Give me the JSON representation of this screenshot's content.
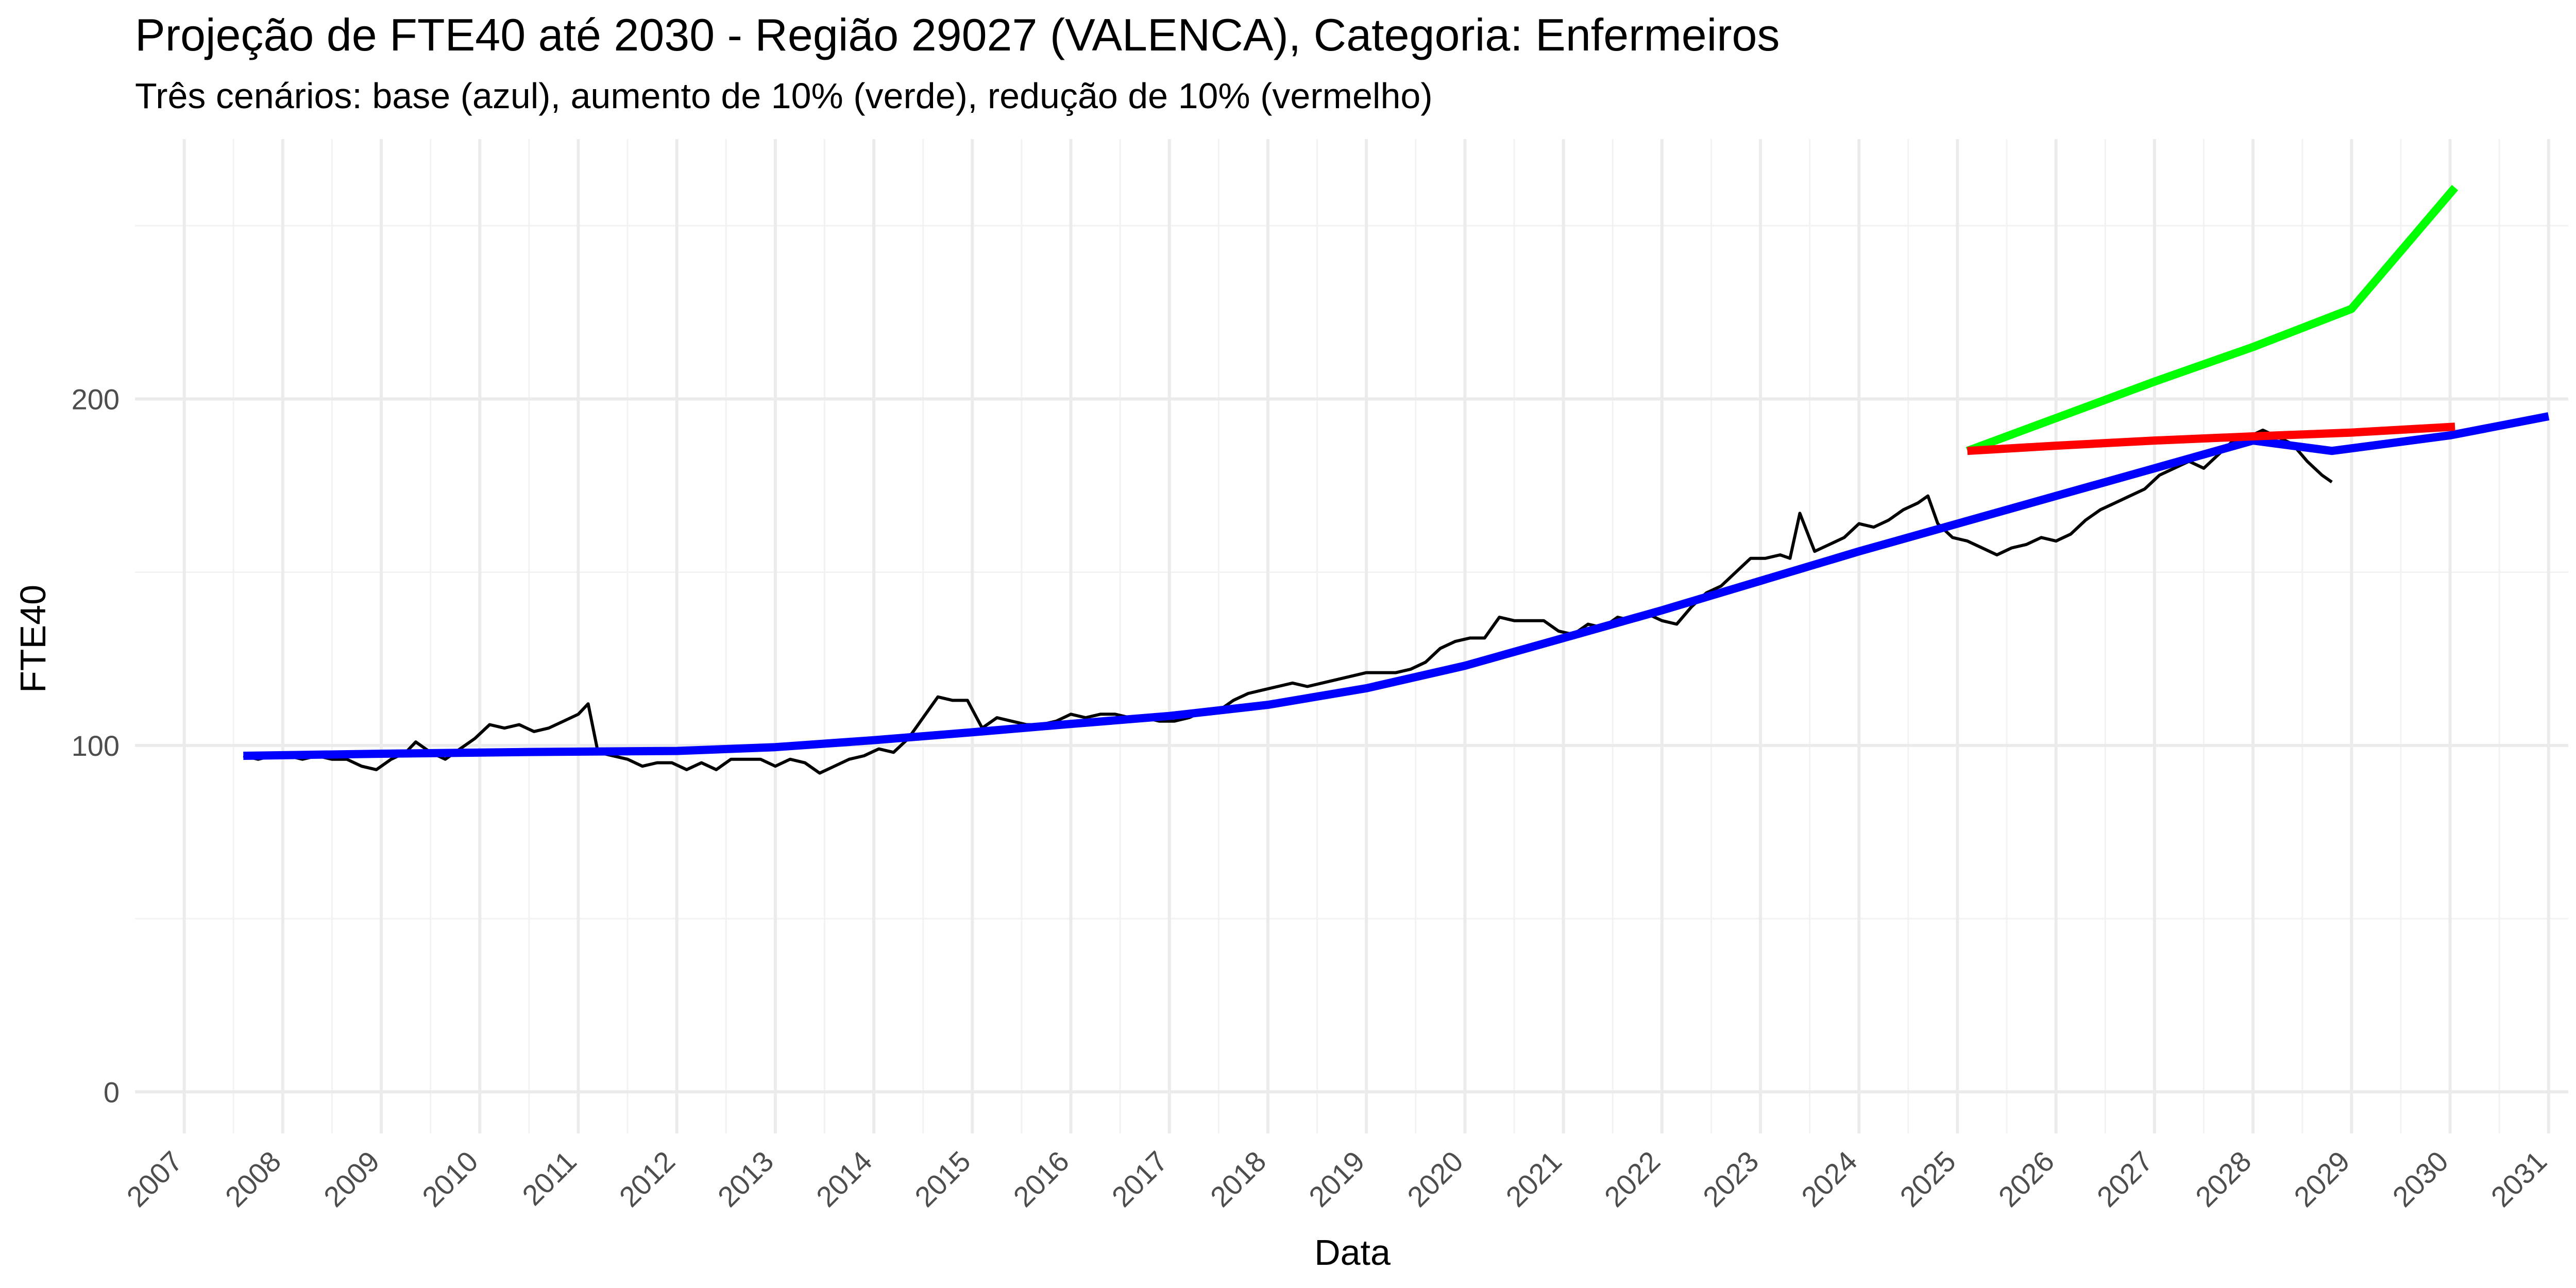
{
  "chart_data": {
    "type": "line",
    "title": "Projeção de FTE40 até 2030 - Região 29027 (VALENCA), Categoria: Enfermeiros",
    "subtitle": "Três cenários: base (azul), aumento de 10% (verde), redução de 10% (vermelho)",
    "xlabel": "Data",
    "ylabel": "FTE40",
    "xlim": [
      2006.5,
      2031.2
    ],
    "ylim": [
      -12,
      275
    ],
    "y_ticks": [
      0,
      100,
      200
    ],
    "y_tick_labels": [
      "0",
      "100",
      "200"
    ],
    "x_ticks": [
      2007,
      2008,
      2009,
      2010,
      2011,
      2012,
      2013,
      2014,
      2015,
      2016,
      2017,
      2018,
      2019,
      2020,
      2021,
      2022,
      2023,
      2024,
      2025,
      2026,
      2027,
      2028,
      2029,
      2030,
      2031
    ],
    "x_tick_labels": [
      "2007",
      "2008",
      "2009",
      "2010",
      "2011",
      "2012",
      "2013",
      "2014",
      "2015",
      "2016",
      "2017",
      "2018",
      "2019",
      "2020",
      "2021",
      "2022",
      "2023",
      "2024",
      "2025",
      "2026",
      "2027",
      "2028",
      "2029",
      "2030",
      "2031"
    ],
    "grid": true,
    "legend": "none",
    "series": [
      {
        "color": "#000000",
        "points": [
          [
            2007.6,
            97
          ],
          [
            2007.75,
            96
          ],
          [
            2007.9,
            97
          ],
          [
            2008.05,
            97
          ],
          [
            2008.2,
            96
          ],
          [
            2008.35,
            97
          ],
          [
            2008.5,
            96
          ],
          [
            2008.65,
            96
          ],
          [
            2008.8,
            94
          ],
          [
            2008.95,
            93
          ],
          [
            2009.1,
            96
          ],
          [
            2009.25,
            98
          ],
          [
            2009.35,
            101
          ],
          [
            2009.5,
            98
          ],
          [
            2009.65,
            96
          ],
          [
            2009.8,
            99
          ],
          [
            2009.95,
            102
          ],
          [
            2010.1,
            106
          ],
          [
            2010.25,
            105
          ],
          [
            2010.4,
            106
          ],
          [
            2010.55,
            104
          ],
          [
            2010.7,
            105
          ],
          [
            2010.85,
            107
          ],
          [
            2011.0,
            109
          ],
          [
            2011.1,
            112
          ],
          [
            2011.2,
            98
          ],
          [
            2011.35,
            97
          ],
          [
            2011.5,
            96
          ],
          [
            2011.65,
            94
          ],
          [
            2011.8,
            95
          ],
          [
            2011.95,
            95
          ],
          [
            2012.1,
            93
          ],
          [
            2012.25,
            95
          ],
          [
            2012.4,
            93
          ],
          [
            2012.55,
            96
          ],
          [
            2012.7,
            96
          ],
          [
            2012.85,
            96
          ],
          [
            2013.0,
            94
          ],
          [
            2013.15,
            96
          ],
          [
            2013.3,
            95
          ],
          [
            2013.45,
            92
          ],
          [
            2013.6,
            94
          ],
          [
            2013.75,
            96
          ],
          [
            2013.9,
            97
          ],
          [
            2014.05,
            99
          ],
          [
            2014.2,
            98
          ],
          [
            2014.35,
            102
          ],
          [
            2014.5,
            108
          ],
          [
            2014.65,
            114
          ],
          [
            2014.8,
            113
          ],
          [
            2014.95,
            113
          ],
          [
            2015.1,
            105
          ],
          [
            2015.25,
            108
          ],
          [
            2015.4,
            107
          ],
          [
            2015.55,
            106
          ],
          [
            2015.7,
            106
          ],
          [
            2015.85,
            107
          ],
          [
            2016.0,
            109
          ],
          [
            2016.15,
            108
          ],
          [
            2016.3,
            109
          ],
          [
            2016.45,
            109
          ],
          [
            2016.6,
            108
          ],
          [
            2016.75,
            108
          ],
          [
            2016.9,
            107
          ],
          [
            2017.05,
            107
          ],
          [
            2017.2,
            108
          ],
          [
            2017.35,
            110
          ],
          [
            2017.5,
            110
          ],
          [
            2017.65,
            113
          ],
          [
            2017.8,
            115
          ],
          [
            2017.95,
            116
          ],
          [
            2018.1,
            117
          ],
          [
            2018.25,
            118
          ],
          [
            2018.4,
            117
          ],
          [
            2018.55,
            118
          ],
          [
            2018.7,
            119
          ],
          [
            2018.85,
            120
          ],
          [
            2019.0,
            121
          ],
          [
            2019.15,
            121
          ],
          [
            2019.3,
            121
          ],
          [
            2019.45,
            122
          ],
          [
            2019.6,
            124
          ],
          [
            2019.75,
            128
          ],
          [
            2019.9,
            130
          ],
          [
            2020.05,
            131
          ],
          [
            2020.2,
            131
          ],
          [
            2020.35,
            137
          ],
          [
            2020.5,
            136
          ],
          [
            2020.65,
            136
          ],
          [
            2020.8,
            136
          ],
          [
            2020.95,
            133
          ],
          [
            2021.1,
            132
          ],
          [
            2021.25,
            135
          ],
          [
            2021.4,
            134
          ],
          [
            2021.55,
            137
          ],
          [
            2021.7,
            136
          ],
          [
            2021.85,
            138
          ],
          [
            2022.0,
            136
          ],
          [
            2022.15,
            135
          ],
          [
            2022.3,
            140
          ],
          [
            2022.45,
            144
          ],
          [
            2022.6,
            146
          ],
          [
            2022.75,
            150
          ],
          [
            2022.9,
            154
          ],
          [
            2023.05,
            154
          ],
          [
            2023.2,
            155
          ],
          [
            2023.3,
            154
          ],
          [
            2023.4,
            167
          ],
          [
            2023.55,
            156
          ],
          [
            2023.7,
            158
          ],
          [
            2023.85,
            160
          ],
          [
            2024.0,
            164
          ],
          [
            2024.15,
            163
          ],
          [
            2024.3,
            165
          ],
          [
            2024.45,
            168
          ],
          [
            2024.6,
            170
          ],
          [
            2024.7,
            172
          ],
          [
            2024.8,
            164
          ],
          [
            2024.95,
            160
          ],
          [
            2025.1,
            159
          ],
          [
            2025.25,
            157
          ],
          [
            2025.4,
            155
          ],
          [
            2025.55,
            157
          ],
          [
            2025.7,
            158
          ],
          [
            2025.85,
            160
          ],
          [
            2026.0,
            159
          ],
          [
            2026.15,
            161
          ],
          [
            2026.3,
            165
          ],
          [
            2026.45,
            168
          ],
          [
            2026.6,
            170
          ],
          [
            2026.75,
            172
          ],
          [
            2026.9,
            174
          ],
          [
            2027.05,
            178
          ],
          [
            2027.2,
            180
          ],
          [
            2027.35,
            182
          ],
          [
            2027.5,
            180
          ],
          [
            2027.65,
            184
          ],
          [
            2027.8,
            188
          ],
          [
            2027.95,
            189
          ],
          [
            2028.1,
            191
          ],
          [
            2028.25,
            189
          ],
          [
            2028.4,
            187
          ],
          [
            2028.55,
            182
          ],
          [
            2028.7,
            178
          ],
          [
            2028.8,
            176
          ]
        ]
      },
      {
        "color": "#0000ff",
        "points": [
          [
            2007.6,
            97
          ],
          [
            2009.0,
            97.6
          ],
          [
            2010.5,
            98.1
          ],
          [
            2012.0,
            98.4
          ],
          [
            2013.0,
            99.5
          ],
          [
            2014.0,
            101.5
          ],
          [
            2015.0,
            103.8
          ],
          [
            2016.0,
            106.2
          ],
          [
            2017.0,
            108.5
          ],
          [
            2018.0,
            111.7
          ],
          [
            2019.0,
            116.5
          ],
          [
            2020.0,
            123
          ],
          [
            2021.0,
            131
          ],
          [
            2022.0,
            139
          ],
          [
            2023.0,
            147.5
          ],
          [
            2024.0,
            156
          ],
          [
            2025.0,
            164
          ],
          [
            2026.0,
            172
          ],
          [
            2027.0,
            180
          ],
          [
            2028.0,
            188
          ],
          [
            2028.8,
            185
          ],
          [
            2030.0,
            189.5
          ],
          [
            2031.0,
            195
          ]
        ]
      },
      {
        "color": "#00ff00",
        "points": [
          [
            2025.1,
            185
          ],
          [
            2027.0,
            205
          ],
          [
            2028.0,
            215
          ],
          [
            2029.0,
            226
          ],
          [
            2030.05,
            261
          ]
        ]
      },
      {
        "color": "#ff0000",
        "points": [
          [
            2025.1,
            185
          ],
          [
            2026.0,
            186.5
          ],
          [
            2027.0,
            188
          ],
          [
            2028.0,
            189.2
          ],
          [
            2029.0,
            190.3
          ],
          [
            2030.05,
            192
          ]
        ]
      }
    ]
  }
}
